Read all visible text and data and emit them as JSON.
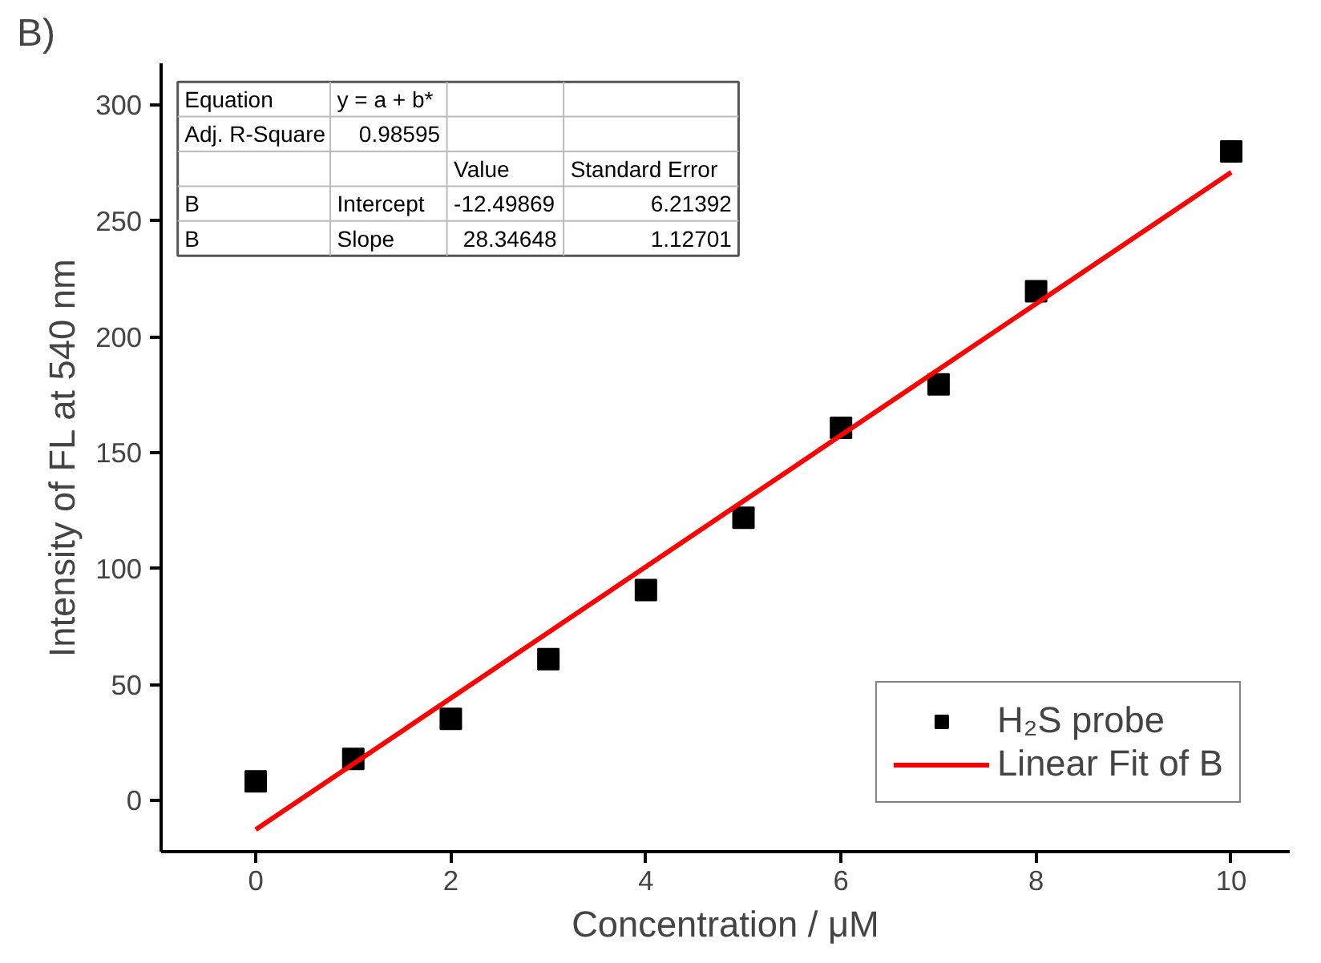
{
  "chart_data": {
    "type": "scatter",
    "title": "B)",
    "xlabel": "Concentration / μM",
    "ylabel": "Intensity of FL at 540 nm",
    "xlim": [
      -0.97,
      10.6
    ],
    "ylim": [
      -22,
      318
    ],
    "xticks": [
      0,
      2,
      4,
      6,
      8,
      10
    ],
    "yticks": [
      0,
      50,
      100,
      150,
      200,
      250,
      300
    ],
    "grid": false,
    "legend": "bottom right",
    "series": [
      {
        "name": "H₂S probe",
        "marker": "square",
        "color": "#000000",
        "x": [
          0,
          1,
          2,
          3,
          4,
          5,
          6,
          7,
          8,
          10
        ],
        "values": [
          8.3,
          18,
          35.3,
          61,
          90.8,
          122,
          160.8,
          179.5,
          219.7,
          280
        ]
      },
      {
        "name": "Linear Fit of B",
        "type": "line",
        "color": "#ff0000",
        "x": [
          0,
          10
        ],
        "values": [
          -12.5,
          271
        ]
      }
    ],
    "annotations": [
      "Equation",
      "y = a + b*",
      "Adj. R-Square",
      "0.98595",
      "Value",
      "Standard Error",
      "B",
      "Intercept",
      "-12.49869",
      "6.21392",
      "B",
      "Slope",
      "28.34648",
      "1.12701"
    ]
  }
}
